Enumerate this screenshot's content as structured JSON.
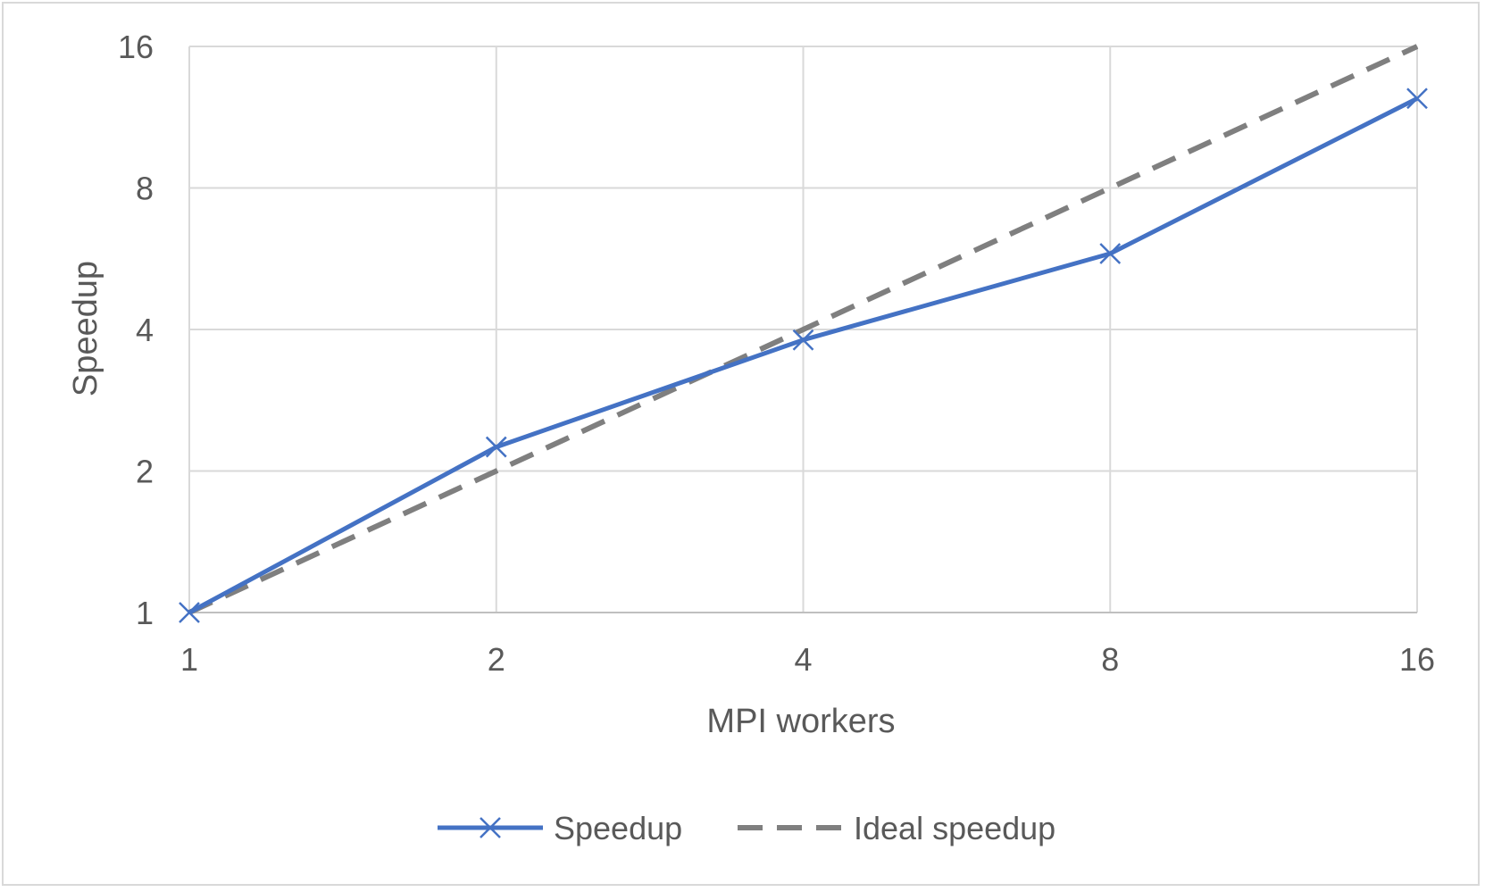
{
  "chart_data": {
    "type": "line",
    "title": "",
    "xlabel": "MPI workers",
    "ylabel": "Speedup",
    "x_scale": "log2",
    "y_scale": "log2",
    "x": [
      1,
      2,
      4,
      8,
      16
    ],
    "x_tick_labels": [
      "1",
      "2",
      "4",
      "8",
      "16"
    ],
    "y_tick_values": [
      1,
      2,
      4,
      8,
      16
    ],
    "y_tick_labels": [
      "1",
      "2",
      "4",
      "8",
      "16"
    ],
    "xlim": [
      1,
      16
    ],
    "ylim": [
      1,
      16
    ],
    "grid": true,
    "legend_position": "bottom",
    "series": [
      {
        "name": "Speedup",
        "values": [
          1,
          2.25,
          3.8,
          5.8,
          12.4
        ],
        "color": "#4472C4",
        "style": "solid",
        "marker": "x"
      },
      {
        "name": "Ideal speedup",
        "values": [
          1,
          2,
          4,
          8,
          16
        ],
        "color": "#7F7F7F",
        "style": "dashed",
        "marker": "none"
      }
    ]
  }
}
